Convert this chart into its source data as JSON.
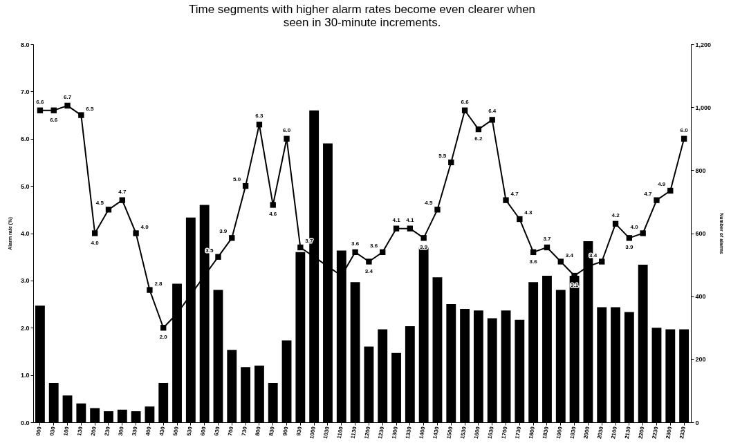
{
  "chart_data": {
    "type": "bar",
    "title": "Time segments with higher alarm rates become even clearer when seen in 30-minute increments.",
    "ylabel": "Alarm rate (%)",
    "y2label": "Number of alarms",
    "categories": [
      "000",
      "030",
      "100",
      "130",
      "200",
      "230",
      "300",
      "330",
      "400",
      "430",
      "500",
      "530",
      "600",
      "630",
      "700",
      "730",
      "800",
      "830",
      "900",
      "930",
      "1000",
      "1030",
      "1100",
      "1130",
      "1200",
      "1230",
      "1300",
      "1330",
      "1400",
      "1430",
      "1500",
      "1530",
      "1600",
      "1630",
      "1700",
      "1730",
      "1800",
      "1830",
      "1900",
      "1930",
      "2000",
      "2030",
      "2100",
      "2130",
      "2200",
      "2230",
      "2300",
      "2330"
    ],
    "series": [
      {
        "axis": "y2",
        "color": "#000000",
        "values": [
          370,
          125,
          85,
          60,
          45,
          35,
          40,
          35,
          50,
          125,
          440,
          650,
          690,
          420,
          230,
          175,
          180,
          125,
          260,
          540,
          990,
          885,
          545,
          445,
          240,
          295,
          220,
          305,
          555,
          460,
          375,
          360,
          355,
          330,
          355,
          325,
          445,
          465,
          420,
          465,
          575,
          365,
          365,
          350,
          500,
          300,
          295,
          295
        ]
      },
      {
        "type": "line",
        "axis": "y",
        "color": "#000000",
        "marker": "square",
        "line_style": "solid",
        "values": [
          6.6,
          6.6,
          6.7,
          6.5,
          4.0,
          4.5,
          4.7,
          4.0,
          2.8,
          2.0,
          2.3,
          2.7,
          3.1,
          3.5,
          3.9,
          5.0,
          6.3,
          4.6,
          6.0,
          3.7,
          3.5,
          3.3,
          3.1,
          3.6,
          3.4,
          3.6,
          4.1,
          4.1,
          3.9,
          4.5,
          5.5,
          6.6,
          6.2,
          6.4,
          4.7,
          4.3,
          3.6,
          3.7,
          3.4,
          3.1,
          3.3,
          3.4,
          4.2,
          3.9,
          4.0,
          4.7,
          4.9,
          6.0
        ],
        "value_labels": [
          "6.6",
          "6.6",
          "6.7",
          "6.5",
          "4.0",
          "4.5",
          "4.7",
          "4.0",
          "2.8",
          "2.0",
          null,
          null,
          null,
          "3.5",
          "3.9",
          "5.0",
          "6.3",
          "4.6",
          "6.0",
          "3.7",
          null,
          null,
          null,
          "3.6",
          "3.4",
          "3.6",
          "4.1",
          "4.1",
          "3.9",
          "4.5",
          "5.5",
          "6.6",
          "6.2",
          "6.4",
          "4.7",
          "4.3",
          "3.6",
          "3.7",
          "3.4",
          "3.1",
          null,
          "3.4",
          "4.2",
          "3.9",
          "4.0",
          "4.7",
          "4.9",
          "6.0"
        ]
      }
    ],
    "ylim": [
      0,
      8
    ],
    "yticks": [
      {
        "value": 0,
        "label": "0.0"
      },
      {
        "value": 1,
        "label": "1.0"
      },
      {
        "value": 2,
        "label": "2.0"
      },
      {
        "value": 3,
        "label": "3.0"
      },
      {
        "value": 4,
        "label": "4.0"
      },
      {
        "value": 5,
        "label": "5.0"
      },
      {
        "value": 6,
        "label": "6.0"
      },
      {
        "value": 7,
        "label": "7.0"
      },
      {
        "value": 8,
        "label": "8.0"
      }
    ],
    "y2lim": [
      0,
      1200
    ],
    "y2ticks": [
      0,
      200,
      400,
      600,
      800,
      {
        "value": 1000,
        "label": "1,000"
      },
      {
        "value": 1200,
        "label": "1,200"
      }
    ],
    "grid": false
  }
}
